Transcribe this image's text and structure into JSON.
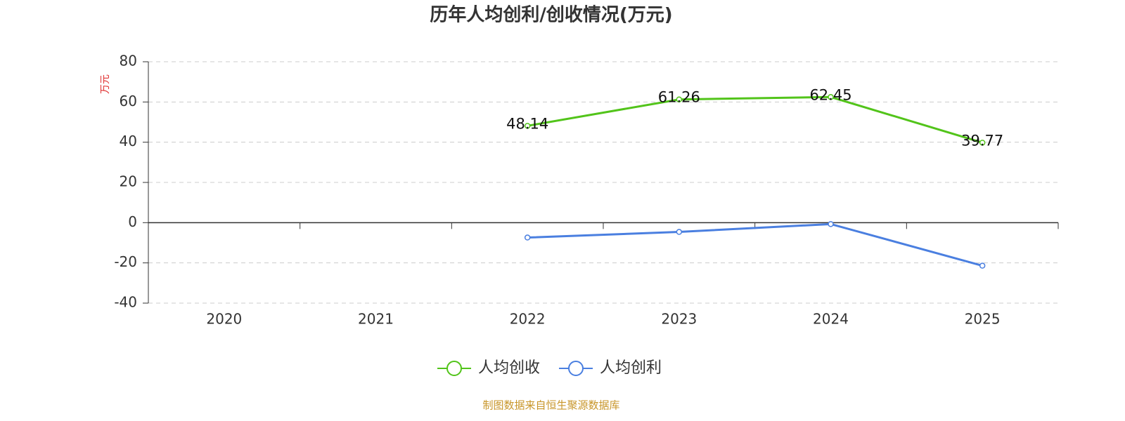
{
  "chart_data": {
    "type": "line",
    "title": "历年人均创利/创收情况(万元)",
    "y_label": "万元",
    "categories": [
      "2020",
      "2021",
      "2022",
      "2023",
      "2024",
      "2025"
    ],
    "series": [
      {
        "name": "人均创收",
        "color": "#52c41a",
        "show_labels": true,
        "values": [
          null,
          null,
          48.14,
          61.26,
          62.45,
          39.77
        ]
      },
      {
        "name": "人均创利",
        "color": "#4a7fe0",
        "show_labels": false,
        "values": [
          null,
          null,
          -7.4,
          -4.6,
          -0.7,
          -21.4
        ]
      }
    ],
    "ylim": [
      -40,
      80
    ],
    "yticks": [
      -40,
      -20,
      0,
      20,
      40,
      60,
      80
    ],
    "grid": true,
    "legend": "bottom",
    "source": "制图数据来自恒生聚源数据库"
  }
}
